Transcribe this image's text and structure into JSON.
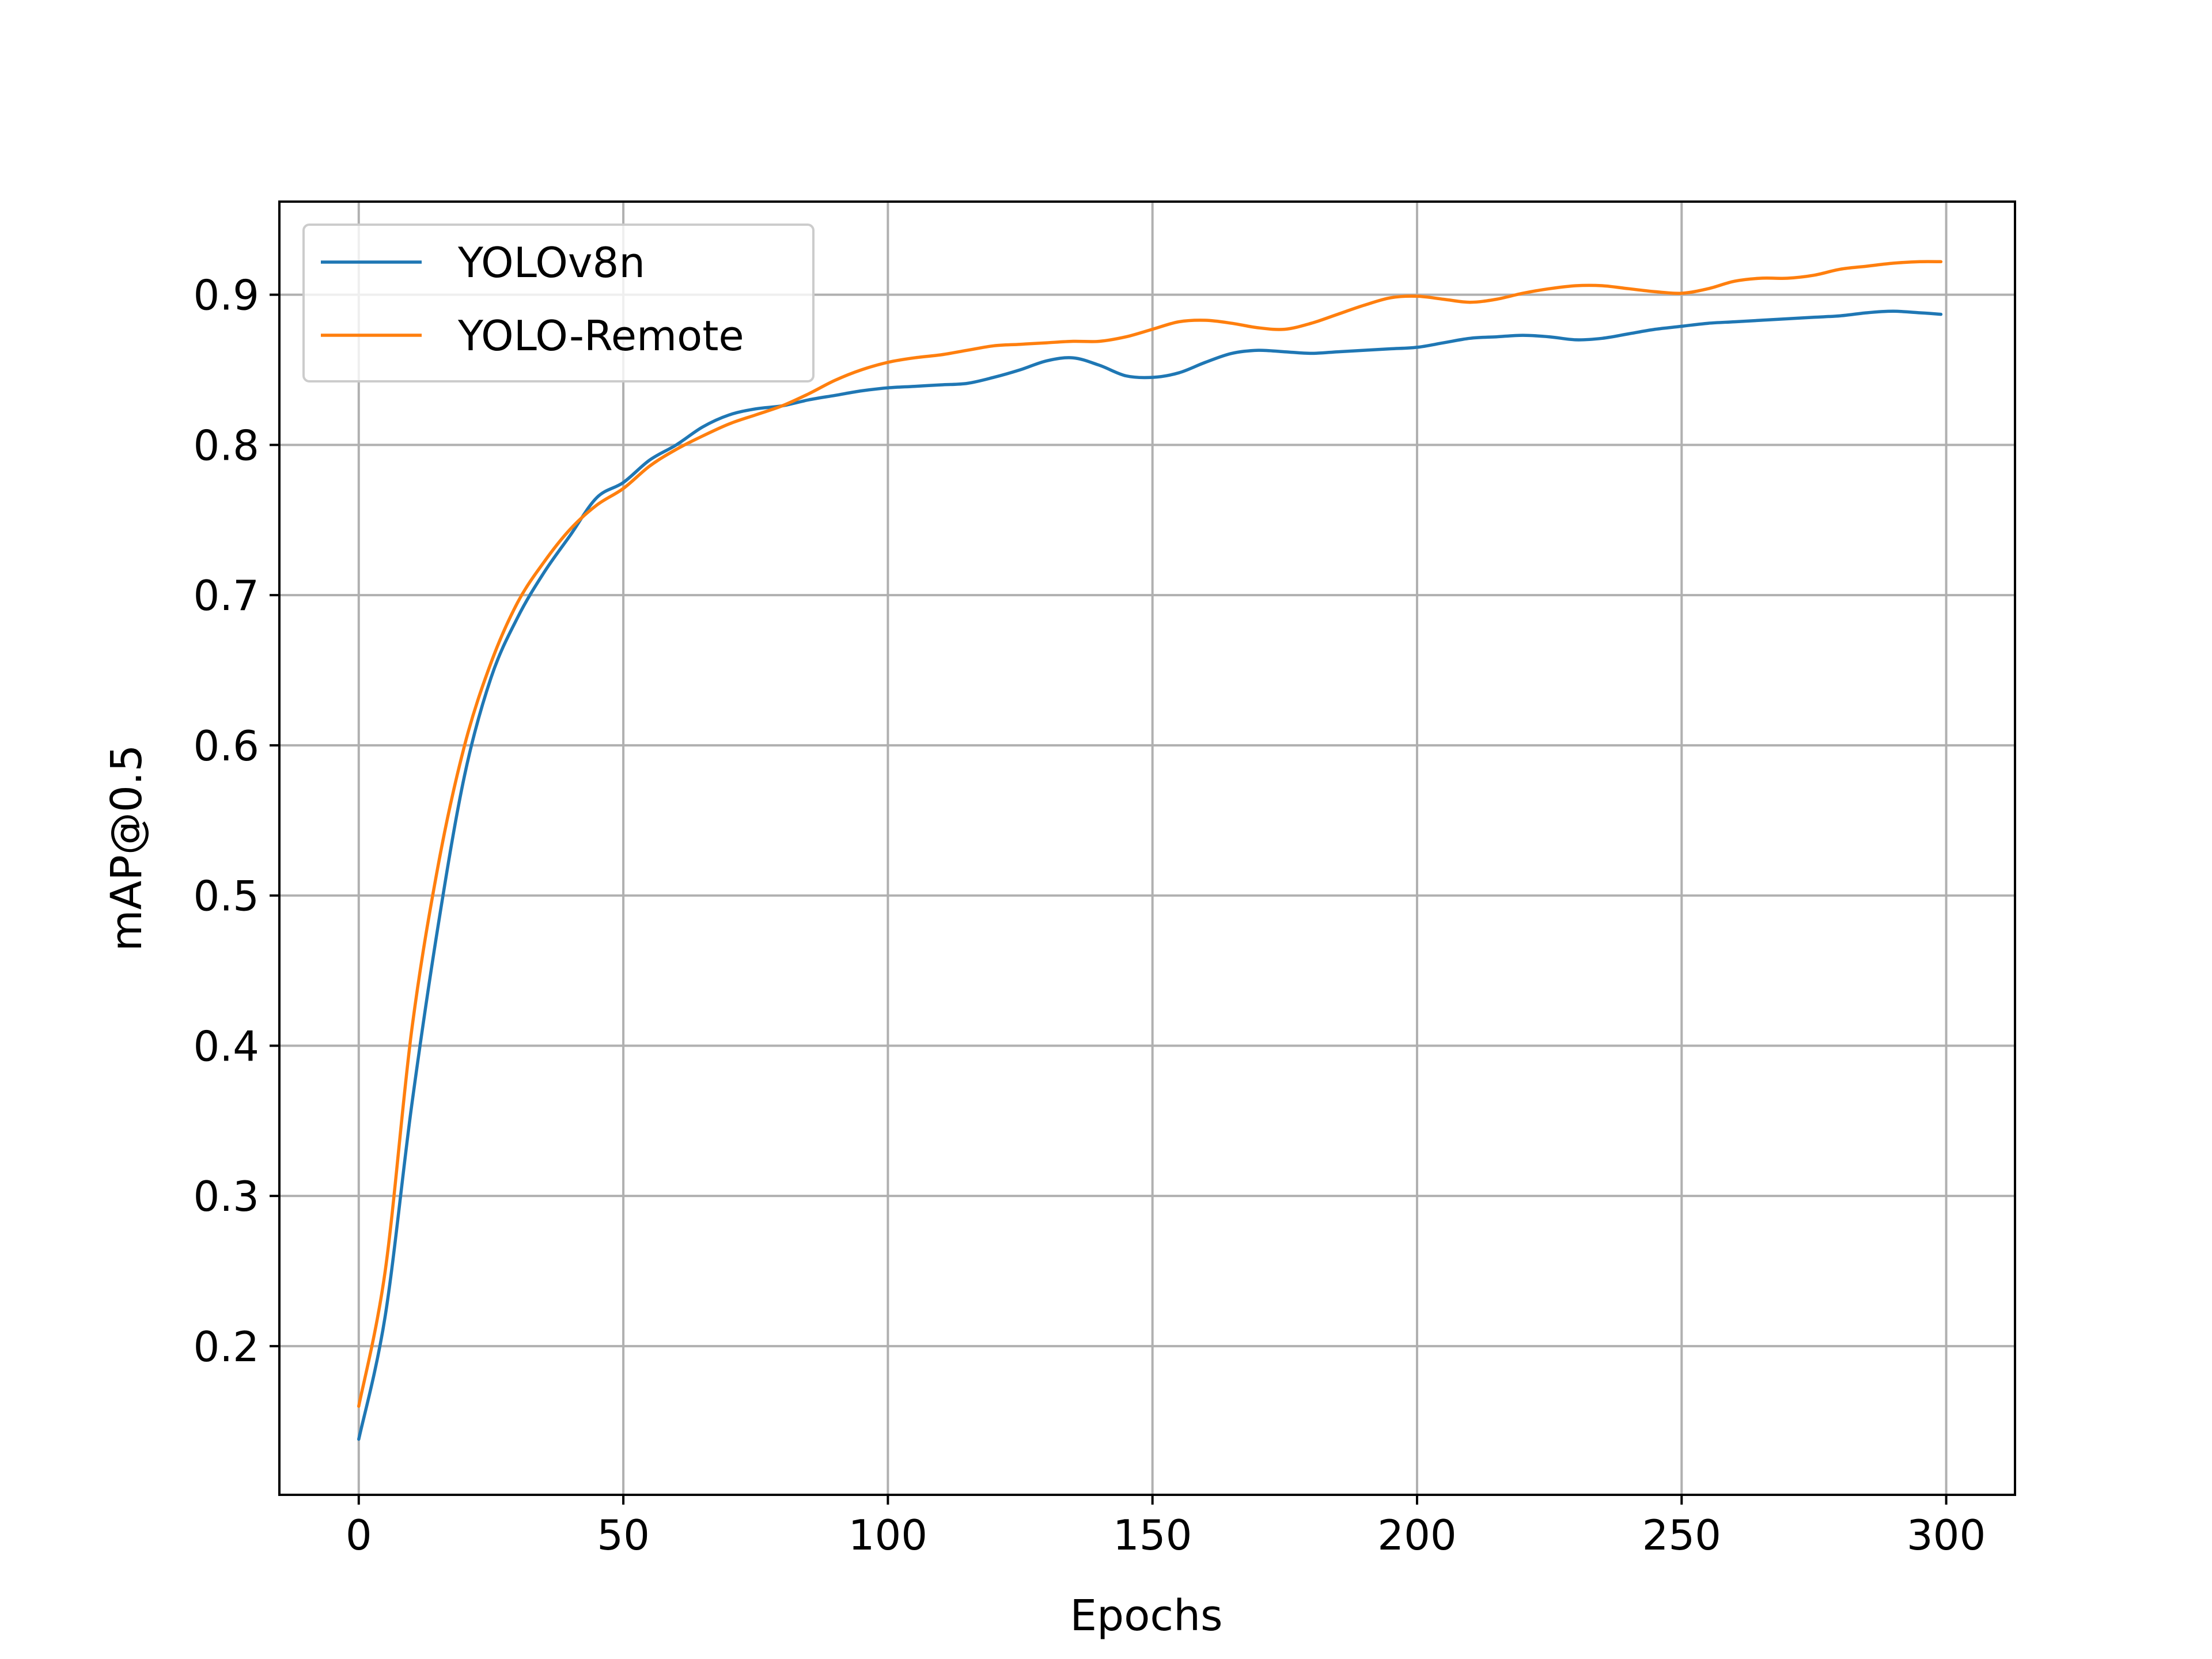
{
  "chart_data": {
    "type": "line",
    "title": "",
    "xlabel": "Epochs",
    "ylabel": "mAP@0.5",
    "xlim": [
      -15,
      313
    ],
    "ylim": [
      0.101,
      0.962
    ],
    "xticks": [
      0,
      50,
      100,
      150,
      200,
      250,
      300
    ],
    "yticks": [
      0.2,
      0.3,
      0.4,
      0.5,
      0.6,
      0.7,
      0.8,
      0.9
    ],
    "xtick_labels": [
      "0",
      "50",
      "100",
      "150",
      "200",
      "250",
      "300"
    ],
    "ytick_labels": [
      "0.2",
      "0.3",
      "0.4",
      "0.5",
      "0.6",
      "0.7",
      "0.8",
      "0.9"
    ],
    "grid": true,
    "legend_position": "top-left",
    "x": [
      0,
      5,
      10,
      15,
      20,
      25,
      30,
      35,
      40,
      45,
      50,
      55,
      60,
      65,
      70,
      75,
      80,
      85,
      90,
      95,
      100,
      105,
      110,
      115,
      120,
      125,
      130,
      135,
      140,
      145,
      150,
      155,
      160,
      165,
      170,
      175,
      180,
      185,
      190,
      195,
      200,
      205,
      210,
      215,
      220,
      225,
      230,
      235,
      240,
      245,
      250,
      255,
      260,
      265,
      270,
      275,
      280,
      285,
      290,
      295,
      299
    ],
    "series": [
      {
        "name": "YOLOv8n",
        "color": "#1f77b4",
        "values": [
          0.138,
          0.22,
          0.36,
          0.48,
          0.58,
          0.645,
          0.685,
          0.715,
          0.74,
          0.765,
          0.775,
          0.79,
          0.8,
          0.812,
          0.82,
          0.824,
          0.826,
          0.83,
          0.833,
          0.836,
          0.838,
          0.839,
          0.84,
          0.841,
          0.845,
          0.85,
          0.856,
          0.858,
          0.853,
          0.846,
          0.845,
          0.848,
          0.855,
          0.861,
          0.863,
          0.862,
          0.861,
          0.862,
          0.863,
          0.864,
          0.865,
          0.868,
          0.871,
          0.872,
          0.873,
          0.872,
          0.87,
          0.871,
          0.874,
          0.877,
          0.879,
          0.881,
          0.882,
          0.883,
          0.884,
          0.885,
          0.886,
          0.888,
          0.889,
          0.888,
          0.887
        ]
      },
      {
        "name": "YOLO-Remote",
        "color": "#ff7f0e",
        "values": [
          0.16,
          0.25,
          0.41,
          0.52,
          0.6,
          0.655,
          0.695,
          0.722,
          0.744,
          0.76,
          0.771,
          0.786,
          0.797,
          0.806,
          0.814,
          0.82,
          0.826,
          0.834,
          0.843,
          0.85,
          0.855,
          0.858,
          0.86,
          0.863,
          0.866,
          0.867,
          0.868,
          0.869,
          0.869,
          0.872,
          0.877,
          0.882,
          0.883,
          0.881,
          0.878,
          0.877,
          0.881,
          0.887,
          0.893,
          0.898,
          0.899,
          0.897,
          0.895,
          0.897,
          0.901,
          0.904,
          0.906,
          0.906,
          0.904,
          0.902,
          0.901,
          0.904,
          0.909,
          0.911,
          0.911,
          0.913,
          0.917,
          0.919,
          0.921,
          0.922,
          0.922
        ]
      }
    ]
  }
}
